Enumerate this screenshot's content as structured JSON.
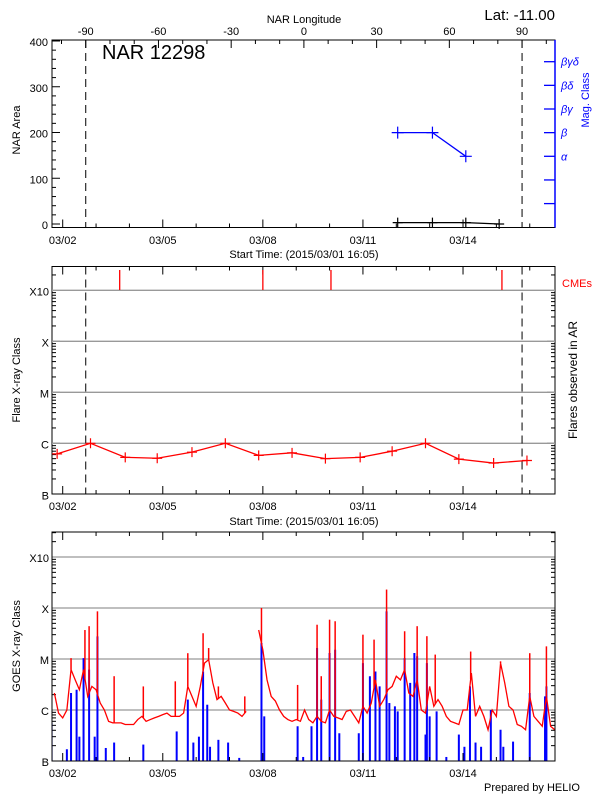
{
  "header": {
    "lat_label": "Lat: -11.00",
    "longitude_axis_label": "NAR Longitude",
    "footer": "Prepared by HELIO"
  },
  "colors": {
    "area": "#000000",
    "mag_class": "#0000ff",
    "flares": "#ff0000",
    "cme": "#ff0000",
    "goes_long": "#ff0000",
    "goes_short": "#0000ff",
    "grid": "#999999"
  },
  "date_tick_labels": [
    "03/02",
    "03/05",
    "03/08",
    "03/11",
    "03/14"
  ],
  "longitude_tick_labels": [
    "-90",
    "-60",
    "-30",
    "0",
    "30",
    "60",
    "90"
  ],
  "class_tick_labels": [
    "B",
    "C",
    "M",
    "X",
    "X10"
  ],
  "chart_data": [
    {
      "type": "line",
      "title": "NAR 12298",
      "xlabel": "Start Time: (2015/03/01 16:05)",
      "ylabel": "NAR Area",
      "y2label": "Mag. Class",
      "x_top_label": "NAR Longitude",
      "xlim": [
        "2015-03-01 16:05",
        "2015-03-16 20:00"
      ],
      "ylim": [
        0,
        400
      ],
      "yticks": [
        "0",
        "100",
        "200",
        "300",
        "400"
      ],
      "y2ticks": [
        "α",
        "β",
        "βγ",
        "βδ",
        "βγδ"
      ],
      "limb_lines_longitude": [
        -90,
        90
      ],
      "series": [
        {
          "key": "area",
          "x": [
            "2015-03-12 01:00",
            "2015-03-13 02:00",
            "2015-03-14 02:00",
            "2015-03-15 02:00"
          ],
          "y": [
            3,
            3,
            3,
            0
          ]
        },
        {
          "key": "mag_class",
          "x": [
            "2015-03-12 01:00",
            "2015-03-13 02:00",
            "2015-03-14 02:00"
          ],
          "y": [
            "β",
            "β",
            "α"
          ]
        }
      ]
    },
    {
      "type": "line",
      "xlabel": "Start Time: (2015/03/01 16:05)",
      "ylabel": "Flare X-ray Class",
      "y2label": "Flares observed in AR",
      "cme_label": "CMEs",
      "yscale": "log",
      "ylim": [
        "B1.0",
        "X30"
      ],
      "grid": true,
      "flares": {
        "x": [
          "2015-03-01 20:00",
          "2015-03-02 20:00",
          "2015-03-03 21:00",
          "2015-03-04 20:00",
          "2015-03-05 21:00",
          "2015-03-06 21:00",
          "2015-03-07 21:00",
          "2015-03-08 21:00",
          "2015-03-09 21:00",
          "2015-03-10 22:00",
          "2015-03-11 21:00",
          "2015-03-12 21:00",
          "2015-03-13 21:00",
          "2015-03-14 22:00",
          "2015-03-15 22:00"
        ],
        "y": [
          "B6.2",
          "C1.0",
          "B5.3",
          "B5.1",
          "B6.7",
          "C1.0",
          "B5.8",
          "B6.5",
          "B5.0",
          "B5.3",
          "B7.0",
          "C1.0",
          "B4.9",
          "B4.1",
          "B4.6"
        ]
      },
      "cmes": [
        "2015-03-03 17:00",
        "2015-03-08 00:00",
        "2015-03-10 01:00",
        "2015-03-15 04:00"
      ]
    },
    {
      "type": "line",
      "ylabel": "GOES X-ray Class",
      "yscale": "log",
      "ylim": [
        "B1.0",
        "X30"
      ],
      "grid": true,
      "long_channel": {
        "start": "2015-03-01 18:00",
        "step_hours": 3,
        "flux_wm2": [
          2.15e-06,
          8.7e-07,
          7e-07,
          1e-06,
          6.2e-06,
          3.9e-06,
          2.5e-06,
          6.2e-06,
          1.85e-06,
          2.9e-06,
          2.5e-06,
          1.37e-06,
          1e-06,
          6e-07,
          5.6e-07,
          5.6e-07,
          5.6e-07,
          5.2e-07,
          5.2e-07,
          5.2e-07,
          6.5e-07,
          7.5e-07,
          6e-07,
          6.5e-07,
          7e-07,
          7.5e-07,
          8.1e-07,
          8.7e-07,
          7.5e-07,
          7.5e-07,
          7.5e-07,
          8.7e-07,
          2.9e-06,
          1.85e-06,
          1.18e-06,
          2.9e-06,
          8.3e-06,
          9.7e-06,
          3.4e-06,
          1.6e-06,
          1.85e-06,
          1.37e-06,
          1e-06,
          9.4e-07,
          8.7e-07,
          7.5e-07,
          9.4e-07,
          null,
          null,
          3.7e-05,
          1.5e-05,
          3.9e-06,
          1.85e-06,
          1.5e-06,
          1e-06,
          7.5e-07,
          6.5e-07,
          6e-07,
          6.5e-07,
          6e-07,
          1e-06,
          6.5e-07,
          5.6e-07,
          7.5e-07,
          6e-07,
          5.6e-07,
          1e-06,
          7.5e-07,
          7e-07,
          6.5e-07,
          9.4e-07,
          1e-06,
          7.5e-07,
          5.6e-07,
          1.18e-06,
          8.7e-07,
          1.37e-06,
          3.9e-06,
          1.18e-06,
          1.6e-06,
          2.5e-06,
          2.9e-06,
          4.6e-06,
          3.9e-06,
          6.2e-06,
          2.15e-06,
          1.85e-06,
          3.9e-06,
          1e-06,
          8.7e-07,
          2.9e-06,
          1.18e-06,
          1.6e-06,
          1.18e-06,
          7.5e-07,
          6e-07,
          5.6e-07,
          5.2e-07,
          1e-06,
          1e-06,
          5.3e-06,
          7.5e-07,
          1.18e-06,
          7.5e-07,
          4.1e-07,
          1e-06,
          7.5e-07,
          8.3e-06,
          3.4e-06,
          1.18e-06,
          1e-06,
          5.2e-07,
          4.8e-07,
          4.1e-07,
          1.85e-06,
          7.5e-07,
          6e-07,
          4.8e-07,
          1.85e-06,
          4.8e-07,
          4.1e-07
        ],
        "peaks": [
          [
            "2015-03-02 06:00",
            1.04e-05
          ],
          [
            "2015-03-02 16:00",
            3.7e-05
          ],
          [
            "2015-03-02 19:00",
            4.4e-05
          ],
          [
            "2015-03-03 01:00",
            8.6e-05
          ],
          [
            "2015-03-03 13:00",
            4.6e-06
          ],
          [
            "2015-03-04 10:00",
            2.9e-06
          ],
          [
            "2015-03-05 09:00",
            3.65e-06
          ],
          [
            "2015-03-05 18:00",
            1.3e-05
          ],
          [
            "2015-03-06 05:00",
            3.2e-05
          ],
          [
            "2015-03-06 09:00",
            1.64e-05
          ],
          [
            "2015-03-06 16:00",
            2.9e-06
          ],
          [
            "2015-03-07 11:00",
            1.85e-06
          ],
          [
            "2015-03-07 23:00",
            0.0001
          ],
          [
            "2015-03-09 01:00",
            3.1e-06
          ],
          [
            "2015-03-09 15:00",
            4.7e-05
          ],
          [
            "2015-03-09 18:00",
            4.6e-06
          ],
          [
            "2015-03-10 00:00",
            5.9e-05
          ],
          [
            "2015-03-10 04:00",
            5.5e-05
          ],
          [
            "2015-03-11 00:00",
            3e-05
          ],
          [
            "2015-03-11 08:00",
            2.4e-05
          ],
          [
            "2015-03-11 17:00",
            0.00023
          ],
          [
            "2015-03-12 06:00",
            3.5e-05
          ],
          [
            "2015-03-12 15:00",
            4.4e-05
          ],
          [
            "2015-03-12 22:00",
            2.8e-05
          ],
          [
            "2015-03-13 04:00",
            1.22e-05
          ],
          [
            "2015-03-14 05:30",
            1.4e-05
          ],
          [
            "2015-03-15 03:00",
            9e-06
          ],
          [
            "2015-03-16 00:00",
            1.3e-05
          ],
          [
            "2015-03-16 12:00",
            1.77e-05
          ]
        ]
      },
      "short_channel": {
        "peaks": [
          [
            "2015-03-01 16:00",
            5.6e-07
          ],
          [
            "2015-03-02 03:00",
            1.7e-07
          ],
          [
            "2015-03-02 06:00",
            2.15e-06
          ],
          [
            "2015-03-02 10:00",
            2.5e-06
          ],
          [
            "2015-03-02 12:00",
            3e-07
          ],
          [
            "2015-03-02 15:00",
            1.04e-05
          ],
          [
            "2015-03-02 19:00",
            6.2e-06
          ],
          [
            "2015-03-02 23:00",
            3e-07
          ],
          [
            "2015-03-03 01:00",
            2.78e-05
          ],
          [
            "2015-03-03 07:00",
            1.8e-07
          ],
          [
            "2015-03-03 13:00",
            2.3e-07
          ],
          [
            "2015-03-04 10:00",
            2.1e-07
          ],
          [
            "2015-03-05 10:00",
            3.8e-07
          ],
          [
            "2015-03-05 18:00",
            1.6e-06
          ],
          [
            "2015-03-05 22:00",
            2.3e-07
          ],
          [
            "2015-03-06 02:00",
            3e-07
          ],
          [
            "2015-03-06 05:00",
            5.7e-06
          ],
          [
            "2015-03-06 08:00",
            1.27e-06
          ],
          [
            "2015-03-06 10:00",
            1.9e-07
          ],
          [
            "2015-03-06 16:00",
            2.6e-07
          ],
          [
            "2015-03-06 23:00",
            2.3e-07
          ],
          [
            "2015-03-07 07:00",
            1.15e-07
          ],
          [
            "2015-03-07 23:00",
            2.06e-05
          ],
          [
            "2015-03-08 01:00",
            7.5e-07
          ],
          [
            "2015-03-09 01:00",
            4.8e-07
          ],
          [
            "2015-03-09 05:00",
            1.2e-07
          ],
          [
            "2015-03-09 11:00",
            4.8e-07
          ],
          [
            "2015-03-09 15:00",
            1.64e-05
          ],
          [
            "2015-03-09 18:00",
            1.6e-06
          ],
          [
            "2015-03-10 00:00",
            1.31e-05
          ],
          [
            "2015-03-10 04:00",
            1.52e-05
          ],
          [
            "2015-03-10 07:00",
            3.5e-07
          ],
          [
            "2015-03-10 21:00",
            3.5e-07
          ],
          [
            "2015-03-11 00:00",
            8.3e-06
          ],
          [
            "2015-03-11 05:00",
            4.6e-06
          ],
          [
            "2015-03-11 09:00",
            5.7e-06
          ],
          [
            "2015-03-11 12:00",
            2.9e-06
          ],
          [
            "2015-03-11 17:00",
            8.6e-05
          ],
          [
            "2015-03-11 19:00",
            1.37e-06
          ],
          [
            "2015-03-11 23:00",
            1.18e-06
          ],
          [
            "2015-03-12 01:00",
            9.4e-07
          ],
          [
            "2015-03-12 06:00",
            1.04e-05
          ],
          [
            "2015-03-12 10:00",
            3.4e-06
          ],
          [
            "2015-03-12 13:00",
            1.31e-05
          ],
          [
            "2015-03-12 15:00",
            1.13e-05
          ],
          [
            "2015-03-12 21:00",
            3.3e-07
          ],
          [
            "2015-03-12 22:00",
            8.3e-06
          ],
          [
            "2015-03-13 00:00",
            7.5e-07
          ],
          [
            "2015-03-13 05:00",
            9.4e-07
          ],
          [
            "2015-03-13 12:00",
            1.2e-07
          ],
          [
            "2015-03-13 21:00",
            3.3e-07
          ],
          [
            "2015-03-14 01:00",
            1.9e-07
          ],
          [
            "2015-03-14 05:00",
            2.9e-06
          ],
          [
            "2015-03-14 09:00",
            2.3e-07
          ],
          [
            "2015-03-14 13:00",
            1.9e-07
          ],
          [
            "2015-03-14 20:00",
            1e-06
          ],
          [
            "2015-03-15 03:00",
            4.1e-07
          ],
          [
            "2015-03-15 05:00",
            1.9e-07
          ],
          [
            "2015-03-15 12:00",
            2.4e-07
          ],
          [
            "2015-03-16 00:00",
            2.15e-06
          ],
          [
            "2015-03-16 11:00",
            1.85e-06
          ],
          [
            "2015-03-16 12:00",
            2.9e-06
          ]
        ]
      }
    }
  ]
}
